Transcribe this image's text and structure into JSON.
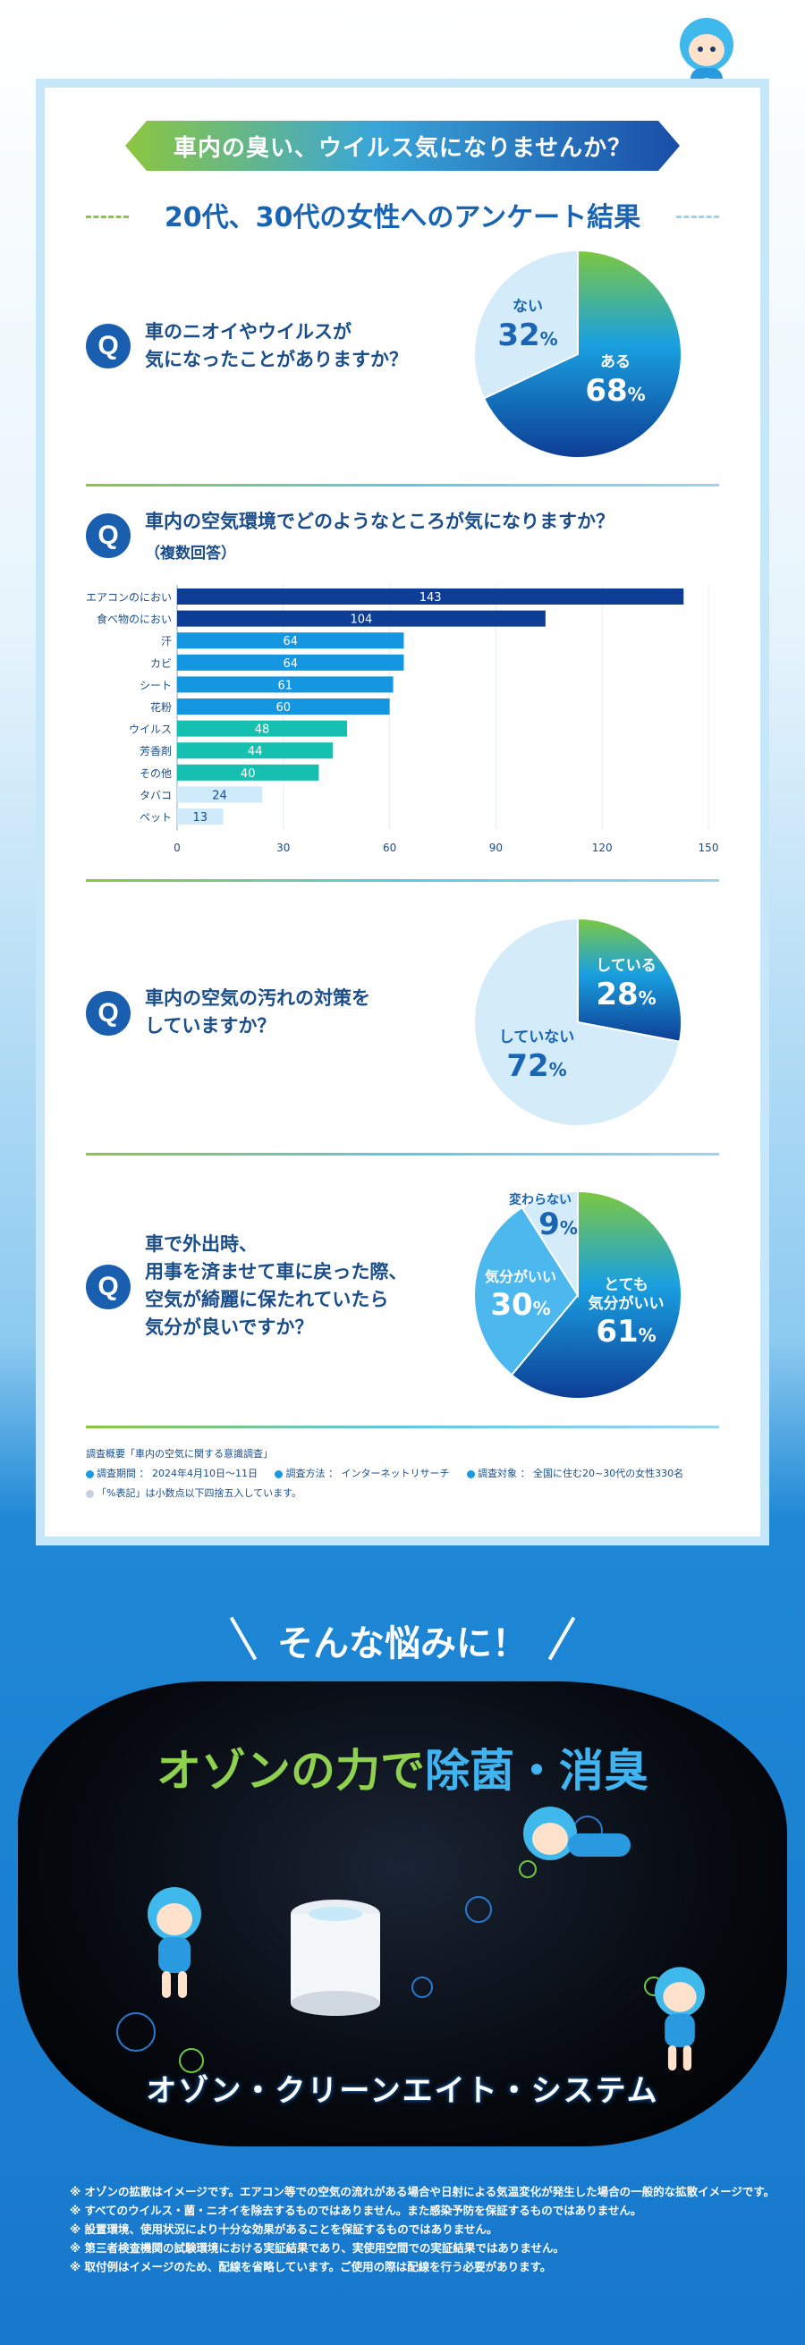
{
  "banner": "車内の臭い、ウイルス気になりませんか？",
  "subtitle": "20代、30代の女性へのアンケート結果",
  "q_badge": "Q",
  "q1": {
    "text_line1": "車のニオイやウイルスが",
    "text_line2": "気になったことがありますか？",
    "chart": {
      "type": "pie",
      "slices": [
        {
          "label": "ある",
          "value": 68
        },
        {
          "label": "ない",
          "value": 32
        }
      ]
    }
  },
  "q2": {
    "text": "車内の空気環境でどのようなところが気になりますか？",
    "sub": "（複数回答）"
  },
  "chart_data": [
    {
      "type": "pie",
      "slices": [
        {
          "label": "ある",
          "value": 68,
          "color": "#1a4ea8"
        },
        {
          "label": "ない",
          "value": 32,
          "color": "#d4ecfa"
        }
      ]
    },
    {
      "type": "bar",
      "orientation": "horizontal",
      "categories": [
        "エアコンのにおい",
        "食べ物のにおい",
        "汗",
        "カビ",
        "シート",
        "花粉",
        "ウイルス",
        "芳香剤",
        "その他",
        "タバコ",
        "ペット"
      ],
      "values": [
        143,
        104,
        64,
        64,
        61,
        60,
        48,
        44,
        40,
        24,
        13
      ],
      "colors": [
        "#0d3d94",
        "#0d3d94",
        "#1596e0",
        "#1596e0",
        "#1596e0",
        "#1596e0",
        "#16c0b0",
        "#16c0b0",
        "#16c0b0",
        "#cfeafb",
        "#cfeafb"
      ],
      "xticks": [
        0,
        30,
        60,
        90,
        120,
        150
      ],
      "xlim": [
        0,
        150
      ]
    },
    {
      "type": "pie",
      "slices": [
        {
          "label": "している",
          "value": 28,
          "color": "#1a4ea8"
        },
        {
          "label": "していない",
          "value": 72,
          "color": "#d4ecfa"
        }
      ]
    },
    {
      "type": "pie",
      "slices": [
        {
          "label": "とても気分がいい",
          "value": 61,
          "color": "#1a4ea8"
        },
        {
          "label": "気分がいい",
          "value": 30,
          "color": "#4cb8ee"
        },
        {
          "label": "変わらない",
          "value": 9,
          "color": "#d4ecfa"
        }
      ]
    }
  ],
  "q3": {
    "text_line1": "車内の空気の汚れの対策を",
    "text_line2": "していますか？"
  },
  "q4": {
    "text_line1": "車で外出時、",
    "text_line2": "用事を済ませて車に戻った際、",
    "text_line3": "空気が綺麗に保たれていたら",
    "text_line4": "気分が良いですか？"
  },
  "pie_labels": {
    "q1_yes": "ある",
    "q1_yes_val": "68",
    "q1_no": "ない",
    "q1_no_val": "32",
    "q3_yes": "している",
    "q3_yes_val": "28",
    "q3_no": "していない",
    "q3_no_val": "72",
    "q4_a1": "とても",
    "q4_a2": "気分がいい",
    "q4_a_val": "61",
    "q4_b": "気分がいい",
    "q4_b_val": "30",
    "q4_c": "変わらない",
    "q4_c_val": "9",
    "pct": "%"
  },
  "survey": {
    "title": "調査概要「車内の空気に関する意識調査」",
    "period": "調査期間 ： 2024年4月10日〜11日",
    "method": "調査方法 ： インターネットリサーチ",
    "target": "調査対象 ： 全国に住む20~30代の女性330名",
    "note": "「%表記」は小数点以下四捨五入しています。"
  },
  "promo": "そんな悩みに！",
  "car": {
    "headline_green": "オゾンの力で",
    "headline_blue": "除菌・消臭",
    "system": "オゾン・クリーンエイト・システム"
  },
  "notes": [
    "※ オゾンの拡散はイメージです。エアコン等での空気の流れがある場合や日射による気温変化が発生した場合の一般的な拡散イメージです。",
    "※ すべてのウイルス・菌・ニオイを除去するものではありません。また感染予防を保証するものではありません。",
    "※ 設置環境、使用状況により十分な効果があることを保証するものではありません。",
    "※ 第三者検査機関の試験環境における実証結果であり、実使用空間での実証結果ではありません。",
    "※ 取付例はイメージのため、配線を省略しています。ご使用の際は配線を行う必要があります。"
  ]
}
